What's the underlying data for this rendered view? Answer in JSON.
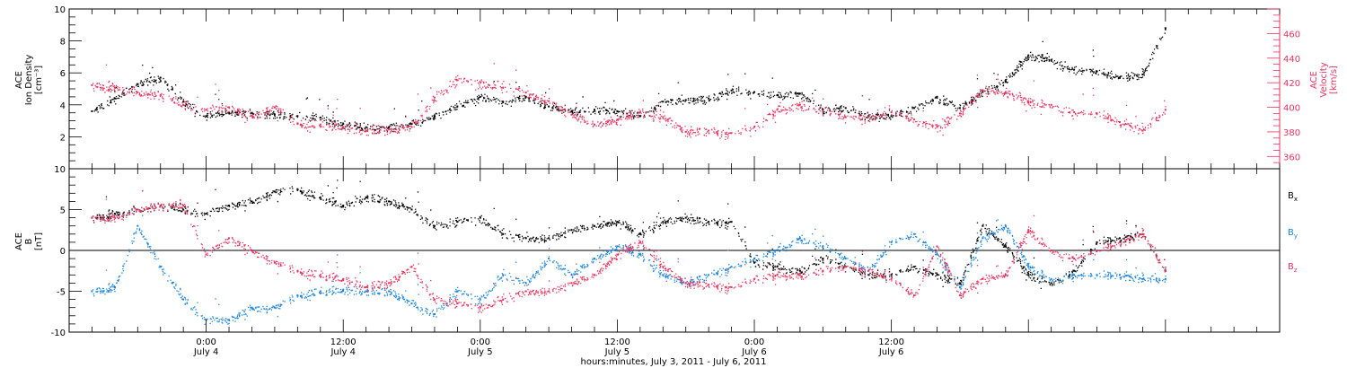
{
  "chart_data": [
    {
      "type": "scatter",
      "panel": "plasma",
      "ylabel_lines": [
        "ACE",
        "Ion Density",
        "[cm⁻³]"
      ],
      "ylim": [
        0,
        10
      ],
      "y_ticks": [
        2,
        4,
        6,
        8,
        10
      ],
      "ylabel_right_lines": [
        "ACE",
        "Velocity",
        "[km/s]"
      ],
      "y2lim": [
        350,
        480
      ],
      "y2_ticks": [
        360,
        380,
        400,
        420,
        440,
        460
      ],
      "grid": false,
      "series": [
        {
          "axis": "left",
          "color": "#000000",
          "x": [
            -10,
            -8,
            -6,
            -4,
            -2,
            0,
            2,
            4,
            6,
            8,
            10,
            12,
            14,
            16,
            18,
            20,
            22,
            24,
            26,
            28,
            30,
            32,
            34,
            36,
            38,
            40,
            42,
            44,
            46,
            48,
            50,
            52,
            54,
            56,
            58,
            60,
            62,
            64,
            66,
            68,
            70,
            72,
            74,
            76,
            78,
            80,
            82,
            84
          ],
          "y": [
            3.6,
            4.4,
            5.3,
            5.7,
            4.2,
            3.3,
            3.5,
            3.5,
            3.4,
            3.3,
            3.2,
            2.8,
            2.6,
            2.6,
            2.8,
            3.3,
            3.9,
            4.5,
            4.2,
            4.5,
            3.9,
            3.6,
            3.7,
            3.6,
            3.3,
            4.2,
            4.3,
            4.4,
            4.9,
            4.8,
            4.6,
            4.7,
            3.7,
            3.8,
            3.3,
            3.3,
            3.8,
            4.5,
            3.8,
            4.8,
            5.5,
            7.1,
            6.8,
            6.2,
            6.1,
            5.7,
            5.9,
            8.8
          ]
        },
        {
          "axis": "right",
          "color": "#e8335f",
          "x": [
            -10,
            -8,
            -6,
            -4,
            -2,
            0,
            2,
            4,
            6,
            8,
            10,
            12,
            14,
            16,
            18,
            20,
            22,
            24,
            26,
            28,
            30,
            32,
            34,
            36,
            38,
            40,
            42,
            44,
            46,
            48,
            50,
            52,
            54,
            56,
            58,
            60,
            62,
            64,
            66,
            68,
            70,
            72,
            74,
            76,
            78,
            80,
            82,
            84
          ],
          "y": [
            418,
            416,
            412,
            410,
            402,
            398,
            400,
            393,
            400,
            387,
            386,
            384,
            381,
            382,
            384,
            408,
            422,
            420,
            416,
            412,
            405,
            394,
            386,
            390,
            396,
            392,
            380,
            381,
            379,
            384,
            398,
            402,
            397,
            392,
            392,
            396,
            390,
            384,
            395,
            414,
            412,
            404,
            402,
            396,
            395,
            388,
            381,
            398
          ]
        }
      ]
    },
    {
      "type": "scatter",
      "panel": "magnetic-field",
      "ylabel_lines": [
        "ACE",
        "B",
        "[nT]"
      ],
      "ylim": [
        -10,
        10
      ],
      "y_ticks": [
        -10,
        -5,
        0,
        5,
        10
      ],
      "zero_line": true,
      "grid": false,
      "legend_position": "right",
      "series": [
        {
          "name": "Bx",
          "color": "#000000",
          "x": [
            -10,
            -8,
            -6,
            -4,
            -2,
            0,
            2,
            4,
            6,
            8,
            10,
            12,
            14,
            16,
            18,
            20,
            22,
            24,
            26,
            28,
            30,
            32,
            34,
            36,
            38,
            40,
            42,
            44,
            46,
            48,
            50,
            52,
            54,
            56,
            58,
            60,
            62,
            64,
            66,
            68,
            70,
            72,
            74,
            76,
            78,
            80,
            82,
            84
          ],
          "y": [
            4,
            4.5,
            5,
            5.5,
            5,
            4.5,
            5.5,
            6,
            7.2,
            7.5,
            6.5,
            5.5,
            6.5,
            6,
            5,
            3,
            3.5,
            4,
            2,
            1.5,
            1.5,
            2.5,
            3,
            3.5,
            2,
            3.5,
            4,
            3.5,
            3.5,
            -1.5,
            -2,
            -2.5,
            -1,
            -2,
            -3,
            -3,
            -2,
            -3,
            -4,
            3,
            0.5,
            -3,
            -4,
            -2.5,
            1,
            1.5,
            2,
            -2.5
          ]
        },
        {
          "name": "By",
          "color": "#1b84dc",
          "x": [
            -10,
            -8,
            -6,
            -4,
            -2,
            0,
            2,
            4,
            6,
            8,
            10,
            12,
            14,
            16,
            18,
            20,
            22,
            24,
            26,
            28,
            30,
            32,
            34,
            36,
            38,
            40,
            42,
            44,
            46,
            48,
            50,
            52,
            54,
            56,
            58,
            60,
            62,
            64,
            66,
            68,
            70,
            72,
            74,
            76,
            78,
            80,
            82,
            84
          ],
          "y": [
            -5,
            -4.5,
            3,
            -2,
            -6,
            -8.5,
            -8.5,
            -7,
            -7,
            -5.5,
            -5,
            -4.8,
            -5,
            -5,
            -6.5,
            -7.8,
            -5,
            -6,
            -3,
            -4,
            -1,
            -3,
            -1,
            0.5,
            -0.5,
            -3,
            -4,
            -3,
            -2,
            -1,
            0,
            1.5,
            0.5,
            -1,
            -2.5,
            1,
            2,
            -0.5,
            -4.5,
            1.5,
            3,
            -2,
            -3.5,
            -3,
            -3,
            -3,
            -3.5,
            -3.5
          ]
        },
        {
          "name": "Bz",
          "color": "#e8335f",
          "x": [
            -10,
            -8,
            -6,
            -4,
            -2,
            0,
            2,
            4,
            6,
            8,
            10,
            12,
            14,
            16,
            18,
            20,
            22,
            24,
            26,
            28,
            30,
            32,
            34,
            36,
            38,
            40,
            42,
            44,
            46,
            48,
            50,
            52,
            54,
            56,
            58,
            60,
            62,
            64,
            66,
            68,
            70,
            72,
            74,
            76,
            78,
            80,
            82,
            84
          ],
          "y": [
            4,
            4,
            5,
            5.5,
            5.5,
            -0.5,
            1.5,
            0,
            -1.5,
            -2.5,
            -3,
            -3.5,
            -4.5,
            -4,
            -2,
            -6,
            -6.5,
            -7,
            -6,
            -5,
            -5,
            -4,
            -3,
            -0.5,
            1,
            -2,
            -4,
            -4.2,
            -4.5,
            -3.5,
            -3,
            -3,
            -2.5,
            -2,
            -2.5,
            -3.5,
            -5.5,
            0.5,
            -5.5,
            -3.5,
            -3,
            2.5,
            0,
            -1,
            0,
            1,
            2,
            -2.5
          ]
        }
      ],
      "legend": [
        {
          "letter": "B",
          "sub": "x",
          "color": "#000000"
        },
        {
          "letter": "B",
          "sub": "y",
          "color": "#1b84dc"
        },
        {
          "letter": "B",
          "sub": "z",
          "color": "#e8335f"
        }
      ]
    }
  ],
  "x_axis": {
    "unit": "hours since 2011-07-04 00:00",
    "xlim": [
      -12,
      94
    ],
    "ticks": [
      {
        "x": 0,
        "time": "0:00",
        "day": "July 4"
      },
      {
        "x": 12,
        "time": "12:00",
        "day": "July 4"
      },
      {
        "x": 24,
        "time": "0:00",
        "day": "July 5"
      },
      {
        "x": 36,
        "time": "12:00",
        "day": "July 5"
      },
      {
        "x": 48,
        "time": "0:00",
        "day": "July 6"
      },
      {
        "x": 60,
        "time": "12:00",
        "day": "July 6"
      }
    ],
    "title": "hours:minutes, July  3, 2011 - July  6, 2011"
  }
}
